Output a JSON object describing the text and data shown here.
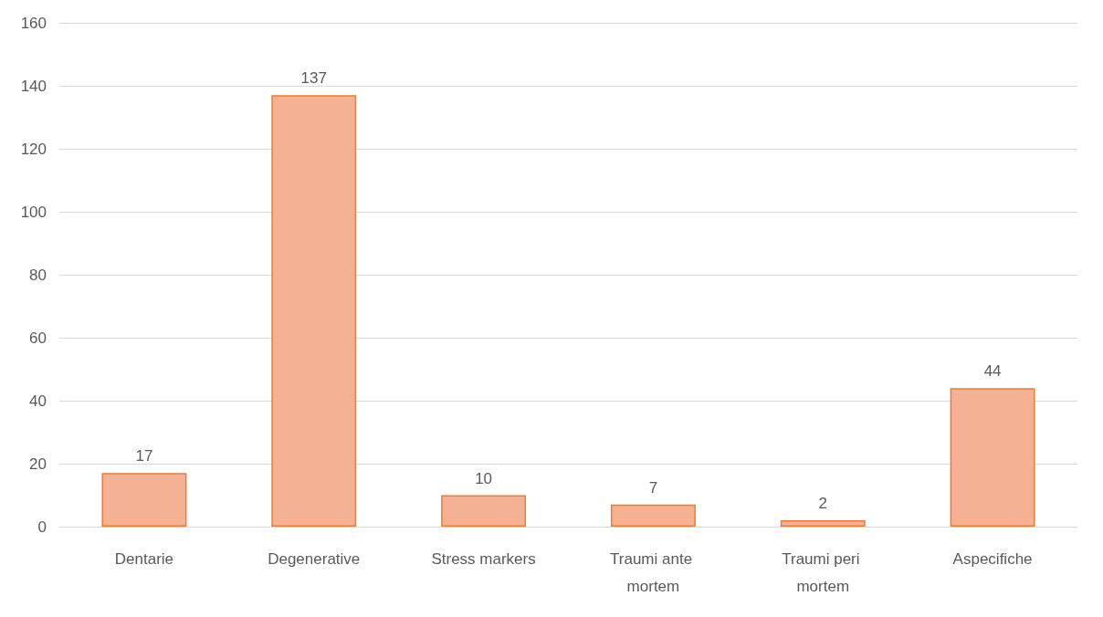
{
  "chart_data": {
    "type": "bar",
    "categories": [
      "Dentarie",
      "Degenerative",
      "Stress markers",
      "Traumi ante mortem",
      "Traumi peri mortem",
      "Aspecifiche"
    ],
    "values": [
      17,
      137,
      10,
      7,
      2,
      44
    ],
    "color": "#f5b194",
    "ylim": [
      0,
      160
    ],
    "yticks": [
      0,
      20,
      40,
      60,
      80,
      100,
      120,
      140,
      160
    ],
    "grid": "y",
    "data_labels": true
  }
}
